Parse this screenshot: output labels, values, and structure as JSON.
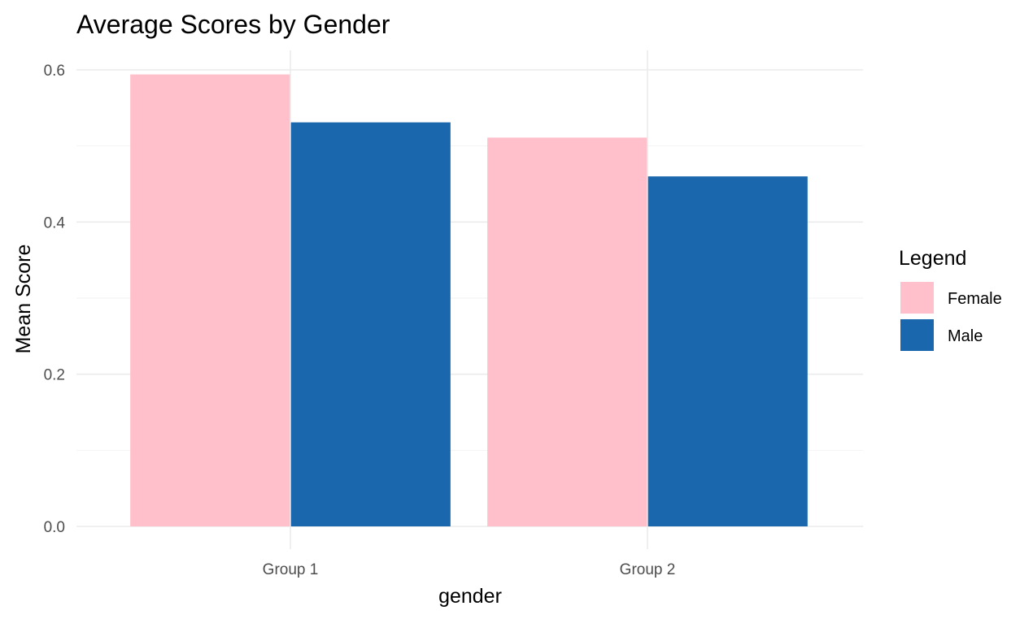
{
  "chart_data": {
    "type": "bar",
    "title": "Average Scores by Gender",
    "xlabel": "gender",
    "ylabel": "Mean Score",
    "categories": [
      "Group 1",
      "Group 2"
    ],
    "series": [
      {
        "name": "Female",
        "values": [
          0.594,
          0.511
        ],
        "color": "#FFC0CB"
      },
      {
        "name": "Male",
        "values": [
          0.531,
          0.46
        ],
        "color": "#1A67AD"
      }
    ],
    "ylim": [
      0,
      0.6
    ],
    "yticks": [
      "0.0",
      "0.2",
      "0.4",
      "0.6"
    ],
    "grid": true,
    "legend": {
      "title": "Legend",
      "placement": "right"
    }
  }
}
